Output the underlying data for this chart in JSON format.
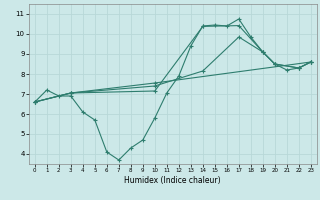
{
  "xlabel": "Humidex (Indice chaleur)",
  "bg_color": "#cce8e8",
  "grid_color": "#b8d8d8",
  "line_color": "#2e7d6e",
  "xlim": [
    -0.5,
    23.5
  ],
  "ylim": [
    3.5,
    11.5
  ],
  "xticks": [
    0,
    1,
    2,
    3,
    4,
    5,
    6,
    7,
    8,
    9,
    10,
    11,
    12,
    13,
    14,
    15,
    16,
    17,
    18,
    19,
    20,
    21,
    22,
    23
  ],
  "yticks": [
    4,
    5,
    6,
    7,
    8,
    9,
    10,
    11
  ],
  "line1_x": [
    0,
    1,
    2,
    3,
    4,
    5,
    6,
    7,
    8,
    9,
    10,
    11,
    12,
    13,
    14,
    15,
    16,
    17,
    18,
    19,
    20,
    21,
    22,
    23
  ],
  "line1_y": [
    6.6,
    7.2,
    6.9,
    6.9,
    6.1,
    5.7,
    4.1,
    3.7,
    4.3,
    4.7,
    5.8,
    7.05,
    7.9,
    9.4,
    10.4,
    10.45,
    10.4,
    10.75,
    9.85,
    9.1,
    8.5,
    8.2,
    8.3,
    8.6
  ],
  "line2_x": [
    0,
    3,
    10,
    14,
    17,
    19,
    20,
    22,
    23
  ],
  "line2_y": [
    6.6,
    7.05,
    7.15,
    10.38,
    10.42,
    9.1,
    8.5,
    8.3,
    8.6
  ],
  "line3_x": [
    0,
    3,
    10,
    14,
    17,
    19,
    20,
    22,
    23
  ],
  "line3_y": [
    6.6,
    7.05,
    7.4,
    8.15,
    9.85,
    9.1,
    8.5,
    8.3,
    8.6
  ],
  "line4_x": [
    0,
    3,
    10,
    23
  ],
  "line4_y": [
    6.6,
    7.05,
    7.55,
    8.6
  ]
}
